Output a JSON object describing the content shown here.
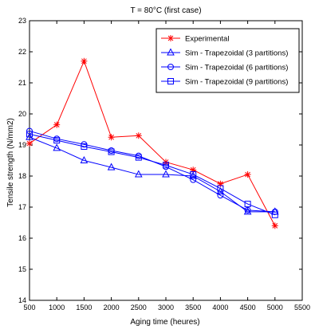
{
  "chart_data": {
    "type": "line",
    "title": "T = 80°C (first case)",
    "xlabel": "Aging time (heures)",
    "ylabel": "Tensile strength (N/mm2)",
    "xlim": [
      500,
      5500
    ],
    "ylim": [
      14,
      23
    ],
    "xticks": [
      500,
      1000,
      1500,
      2000,
      2500,
      3000,
      3500,
      4000,
      4500,
      5000,
      5500
    ],
    "yticks": [
      14,
      15,
      16,
      17,
      18,
      19,
      20,
      21,
      22,
      23
    ],
    "grid": false,
    "legend_position": "top-right",
    "x": [
      500,
      1000,
      1500,
      2000,
      2500,
      3000,
      3500,
      4000,
      4500,
      5000
    ],
    "series": [
      {
        "name": "Experimental",
        "color": "#ff0000",
        "marker": "star",
        "values": [
          19.05,
          19.65,
          21.7,
          19.25,
          19.3,
          18.45,
          18.2,
          17.75,
          18.05,
          16.4
        ]
      },
      {
        "name": "Sim - Trapezoidal (3 partitions)",
        "color": "#0000ff",
        "marker": "triangle",
        "values": [
          19.25,
          18.9,
          18.5,
          18.28,
          18.05,
          18.05,
          18.0,
          17.5,
          16.85,
          16.85
        ]
      },
      {
        "name": "Sim - Trapezoidal (6 partitions)",
        "color": "#0000ff",
        "marker": "circle",
        "values": [
          19.45,
          19.2,
          19.02,
          18.82,
          18.65,
          18.3,
          17.88,
          17.38,
          16.9,
          16.85
        ]
      },
      {
        "name": "Sim - Trapezoidal (9 partitions)",
        "color": "#0000ff",
        "marker": "square",
        "values": [
          19.35,
          19.15,
          18.95,
          18.78,
          18.6,
          18.35,
          18.05,
          17.6,
          17.1,
          16.75
        ]
      }
    ]
  }
}
